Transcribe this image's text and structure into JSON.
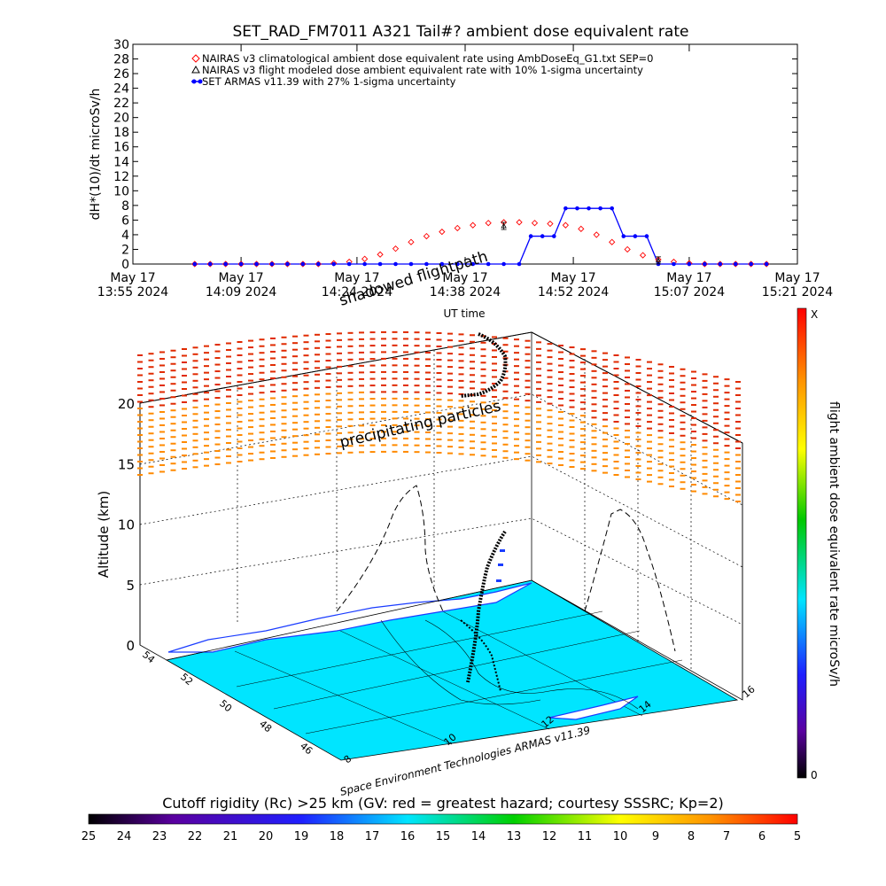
{
  "chart_data": [
    {
      "type": "line",
      "title": "SET_RAD_FM7011  A321 Tail#? ambient dose equivalent rate",
      "ylabel": "dH*(10)/dt microSv/h",
      "xlabel": "UT time",
      "ylim": [
        0,
        30
      ],
      "yticks": [
        0,
        2,
        4,
        6,
        8,
        10,
        12,
        14,
        16,
        18,
        20,
        22,
        24,
        26,
        28,
        30
      ],
      "xtick_labels": [
        {
          "line1": "May 17",
          "line2": "13:55 2024"
        },
        {
          "line1": "May 17",
          "line2": "14:09 2024"
        },
        {
          "line1": "May 17",
          "line2": "14:24 2024"
        },
        {
          "line1": "May 17",
          "line2": "14:38 2024"
        },
        {
          "line1": "May 17",
          "line2": "14:52 2024"
        },
        {
          "line1": "May 17",
          "line2": "15:07 2024"
        },
        {
          "line1": "May 17",
          "line2": "15:21 2024"
        }
      ],
      "x_minutes_from_1355": [
        0,
        14,
        29,
        43,
        57,
        72,
        86
      ],
      "legend_position": "top-left",
      "series": [
        {
          "name": "NAIRAS v3 climatological ambient dose equivalent rate using AmbDoseEq_G1.txt SEP=0",
          "marker": "diamond",
          "color": "#ff0000",
          "x": [
            8,
            10,
            12,
            14,
            16,
            18,
            20,
            22,
            24,
            26,
            28,
            30,
            32,
            34,
            36,
            38,
            40,
            42,
            44,
            46,
            48,
            50,
            52,
            54,
            56,
            58,
            60,
            62,
            64,
            66,
            68,
            70,
            72,
            74,
            76,
            78,
            80,
            82
          ],
          "values": [
            0,
            0,
            0,
            0,
            0,
            0,
            0,
            0,
            0,
            0.1,
            0.3,
            0.7,
            1.3,
            2.1,
            3,
            3.8,
            4.4,
            4.9,
            5.3,
            5.6,
            5.7,
            5.7,
            5.6,
            5.5,
            5.3,
            4.8,
            4,
            3,
            2,
            1.2,
            0.6,
            0.3,
            0.1,
            0,
            0,
            0,
            0,
            0
          ]
        },
        {
          "name": "NAIRAS v3 flight modeled dose ambient equivalent rate with 10% 1-sigma uncertainty",
          "marker": "triangle",
          "color": "#000000",
          "x": [
            48,
            68
          ],
          "values": [
            5.2,
            0.5
          ]
        },
        {
          "name": "SET ARMAS v11.39 with 27% 1-sigma uncertainty",
          "marker": "circle",
          "color": "#0000ff",
          "x": [
            8,
            10,
            12,
            14,
            16,
            18,
            20,
            22,
            24,
            26,
            28,
            30,
            32,
            34,
            36,
            38,
            40,
            42,
            44,
            46,
            48,
            50,
            51.5,
            53,
            54.5,
            56,
            57.5,
            59,
            60.5,
            62,
            63.5,
            65,
            66.5,
            68,
            70,
            72,
            74,
            76,
            78,
            80,
            82
          ],
          "values": [
            0,
            0,
            0,
            0,
            0,
            0,
            0,
            0,
            0,
            0,
            0,
            0,
            0,
            0,
            0,
            0,
            0,
            0,
            0,
            0,
            0,
            0,
            3.8,
            3.8,
            3.8,
            7.6,
            7.6,
            7.6,
            7.6,
            7.6,
            3.8,
            3.8,
            3.8,
            0,
            0,
            0,
            0,
            0,
            0,
            0,
            0
          ]
        }
      ]
    },
    {
      "type": "scatter",
      "title": "",
      "zlabel": "Altitude (km)",
      "zlim": [
        0,
        20
      ],
      "zticks": [
        0,
        5,
        10,
        15,
        20
      ],
      "lat_ticks": [
        "54",
        "52",
        "50",
        "48",
        "46"
      ],
      "lon_ticks": [
        "8",
        "10",
        "12",
        "14",
        "16"
      ],
      "annotations": [
        "shadowed flightpath",
        "precipitating particles",
        "Space Environment Technologies ARMAS v11.39"
      ],
      "colorbar_label": "flight ambient dose equivalent rate microSv/h",
      "colorbar_min": "0",
      "colorbar_max": "X"
    },
    {
      "type": "heatmap",
      "title": "Cutoff rigidity (Rc) >25 km (GV: red = greatest hazard; courtesy SSSRC; Kp=2)",
      "scale_labels": [
        "25",
        "24",
        "23",
        "22",
        "21",
        "20",
        "19",
        "18",
        "17",
        "16",
        "15",
        "14",
        "13",
        "12",
        "11",
        "10",
        "9",
        "8",
        "7",
        "6",
        "5"
      ]
    }
  ]
}
